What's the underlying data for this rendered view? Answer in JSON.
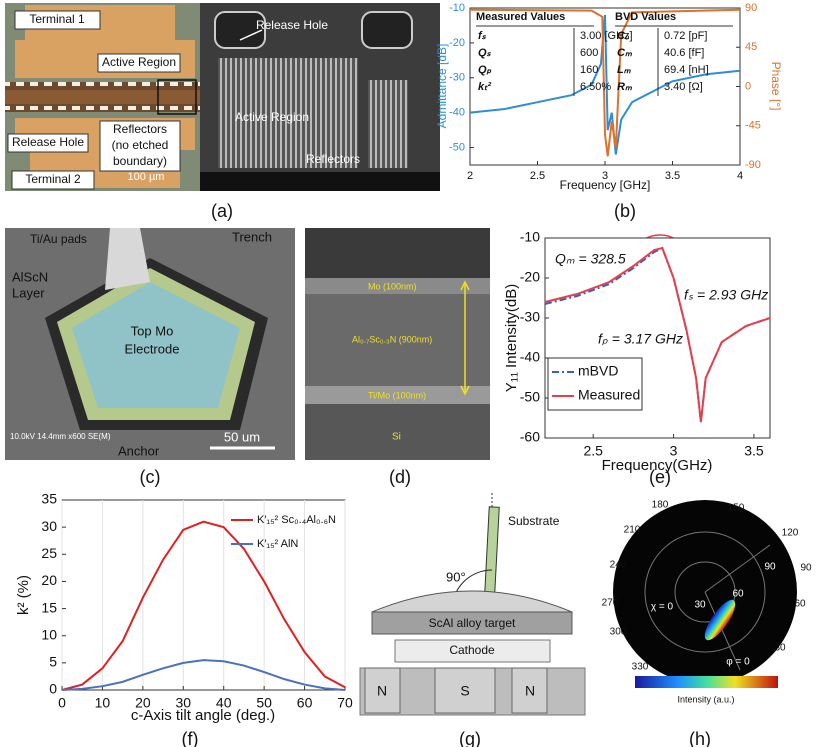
{
  "chart_data": [
    {
      "type": "line",
      "caption": "(b)",
      "x_label": "Frequency [GHz]",
      "y_label": "Admittance [dB]",
      "y2_label": "Phase [°]",
      "xlim": [
        2,
        4
      ],
      "xticks": [
        2,
        2.5,
        3,
        3.5,
        4
      ],
      "ylim": [
        -55,
        -10
      ],
      "yticks": [
        -10,
        -20,
        -30,
        -40,
        -50
      ],
      "y2lim": [
        -90,
        90
      ],
      "y2ticks": [
        -90,
        -45,
        0,
        45,
        90
      ],
      "series": [
        {
          "color": "#2a8fd4",
          "x": [
            2,
            2.25,
            2.5,
            2.75,
            2.9,
            2.97,
            3.0,
            3.02,
            3.05,
            3.08,
            3.12,
            3.2,
            3.5,
            3.75,
            4
          ],
          "values": [
            -40,
            -39,
            -37,
            -35,
            -32,
            -26,
            -12,
            -45,
            -40,
            -52,
            -42,
            -37,
            -31,
            -29,
            -28
          ]
        },
        {
          "color": "#e0702a",
          "axis": "y2",
          "x": [
            2,
            2.9,
            2.98,
            3.0,
            3.02,
            3.05,
            3.08,
            3.12,
            3.2,
            4
          ],
          "values": [
            88,
            87,
            80,
            -55,
            -80,
            -40,
            -70,
            60,
            85,
            88
          ]
        }
      ],
      "tables": [
        {
          "title": "Measured Values",
          "rows": [
            [
              "fₛ",
              "3.00 [GHz]"
            ],
            [
              "Qₛ",
              "600"
            ],
            [
              "Qₚ",
              "160"
            ],
            [
              "kₜ²",
              "6.50%"
            ]
          ]
        },
        {
          "title": "BVD Values",
          "rows": [
            [
              "C₀",
              "0.72 [pF]"
            ],
            [
              "Cₘ",
              "40.6 [fF]"
            ],
            [
              "Lₘ",
              "69.4 [nH]"
            ],
            [
              "Rₘ",
              "3.40 [Ω]"
            ]
          ]
        }
      ]
    },
    {
      "type": "line",
      "caption": "(e)",
      "x_label": "Frequency(GHz)",
      "y_label": "Y₁₁ Intensity(dB)",
      "xlim": [
        2.2,
        3.6
      ],
      "xticks": [
        2.5,
        3,
        3.5
      ],
      "ylim": [
        -60,
        -10
      ],
      "yticks": [
        -10,
        -20,
        -30,
        -40,
        -50,
        -60
      ],
      "legend": "lower left",
      "x": [
        2.2,
        2.4,
        2.6,
        2.75,
        2.88,
        2.93,
        3.0,
        3.08,
        3.14,
        3.17,
        3.2,
        3.3,
        3.45,
        3.6
      ],
      "series": [
        {
          "name": "mBVD",
          "color": "#3b5bd6",
          "linestyle": "dashdot",
          "values": [
            -26.5,
            -24.5,
            -21.5,
            -17.5,
            -13.5,
            -12.5,
            -20,
            -33,
            -45,
            -56,
            -45,
            -36,
            -32,
            -30
          ]
        },
        {
          "name": "Measured",
          "color": "#e8404a",
          "linestyle": "solid",
          "values": [
            -26,
            -24,
            -21,
            -17,
            -13,
            -12.5,
            -20,
            -33,
            -45,
            -56,
            -45,
            -36,
            -32,
            -30
          ]
        }
      ],
      "annotations": [
        "Qₘ = 328.5",
        "fₛ = 2.93 GHz",
        "fₚ = 3.17 GHz"
      ]
    },
    {
      "type": "line",
      "caption": "(f)",
      "x_label": "c-Axis tilt angle (deg.)",
      "y_label": "k² (%)",
      "xlim": [
        0,
        70
      ],
      "xticks": [
        0,
        10,
        20,
        30,
        40,
        50,
        60,
        70
      ],
      "ylim": [
        0,
        35
      ],
      "yticks": [
        0,
        5,
        10,
        15,
        20,
        25,
        30,
        35
      ],
      "grid": true,
      "legend": "upper right",
      "x": [
        0,
        5,
        10,
        15,
        20,
        25,
        30,
        35,
        40,
        45,
        50,
        55,
        60,
        65,
        70
      ],
      "series": [
        {
          "name": "K′₁₅² Sc₀.₄Al₀.₆N",
          "color": "#e02020",
          "linestyle": "solid",
          "values": [
            0,
            1,
            4,
            9,
            17,
            24,
            29.5,
            31,
            30,
            26,
            20,
            13,
            7,
            2.5,
            0.5
          ]
        },
        {
          "name": "K′₁₅² AlN",
          "color": "#4a70c0",
          "linestyle": "solid",
          "values": [
            0,
            0.2,
            0.7,
            1.5,
            2.8,
            4,
            5,
            5.5,
            5.3,
            4.5,
            3.3,
            2,
            1,
            0.3,
            0
          ]
        }
      ]
    }
  ],
  "figures": {
    "a": {
      "caption": "(a)",
      "labels": [
        "Terminal 1",
        "Active Region",
        "Release Hole",
        "Reflectors",
        "(no etched",
        "boundary)",
        "Terminal 2",
        "100 µm",
        "Release Hole",
        "Active Region",
        "Reflectors"
      ]
    },
    "c": {
      "caption": "(c)",
      "labels": [
        "Ti/Au pads",
        "Trench",
        "AlScN",
        "Layer",
        "Top Mo",
        "Electrode",
        "Anchor",
        "50 um",
        "10.0kV 14.4mm x600 SE(M)"
      ]
    },
    "d": {
      "caption": "(d)",
      "labels": [
        "Mo (100nm)",
        "Al₀.₇Sc₀.₃N (900nm)",
        "Ti/Mo (100nm)",
        "Si"
      ]
    },
    "g": {
      "caption": "(g)",
      "labels": [
        "Substrate",
        "90°",
        "ScAl alloy target",
        "Cathode",
        "N",
        "S",
        "N"
      ]
    },
    "h": {
      "caption": "(h)",
      "labels": [
        "180",
        "150",
        "120",
        "90",
        "60",
        "30",
        "330",
        "300",
        "270",
        "240",
        "210",
        "χ = 0",
        "30",
        "60",
        "90",
        "φ = 0",
        "Intensity (a.u.)"
      ]
    }
  }
}
